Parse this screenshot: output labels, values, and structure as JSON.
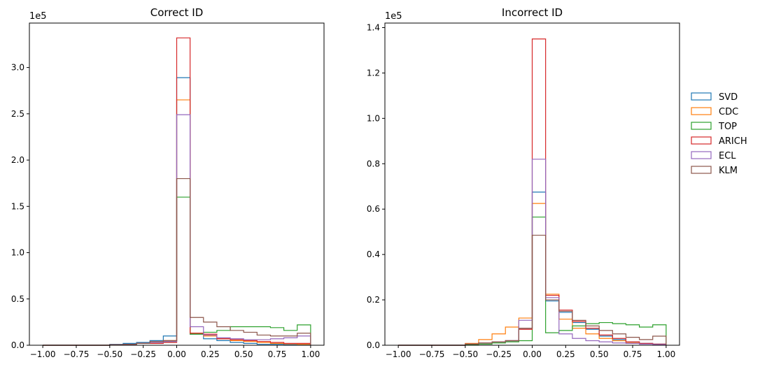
{
  "chart_data": [
    {
      "type": "histogram-step",
      "title": "Correct ID",
      "xlabel": "",
      "ylabel": "",
      "offset_label": "1e5",
      "xlim": [
        -1.1,
        1.1
      ],
      "ylim": [
        0,
        3.48
      ],
      "x_ticks": [
        -1.0,
        -0.75,
        -0.5,
        -0.25,
        0.0,
        0.25,
        0.5,
        0.75,
        1.0
      ],
      "x_tick_labels": [
        "−1.00",
        "−0.75",
        "−0.50",
        "−0.25",
        "0.00",
        "0.25",
        "0.50",
        "0.75",
        "1.00"
      ],
      "y_ticks": [
        0,
        0.5,
        1.0,
        1.5,
        2.0,
        2.5,
        3.0
      ],
      "y_tick_labels": [
        "0.0",
        "0.5",
        "1.0",
        "1.5",
        "2.0",
        "2.5",
        "3.0"
      ],
      "bin_edges": [
        -1.0,
        -0.9,
        -0.8,
        -0.7,
        -0.6,
        -0.5,
        -0.4,
        -0.3,
        -0.2,
        -0.1,
        0.0,
        0.1,
        0.2,
        0.3,
        0.4,
        0.5,
        0.6,
        0.7,
        0.8,
        0.9,
        1.0
      ],
      "series": [
        {
          "name": "SVD",
          "color": "#1f77b4",
          "values": [
            0,
            0,
            0,
            0,
            0,
            0.01,
            0.02,
            0.03,
            0.05,
            0.1,
            2.89,
            0.12,
            0.07,
            0.05,
            0.03,
            0.02,
            0.01,
            0.01,
            0.005,
            0.005
          ]
        },
        {
          "name": "CDC",
          "color": "#ff7f0e",
          "values": [
            0,
            0,
            0,
            0,
            0,
            0.005,
            0.01,
            0.02,
            0.03,
            0.05,
            2.65,
            0.13,
            0.1,
            0.07,
            0.05,
            0.04,
            0.03,
            0.02,
            0.015,
            0.01
          ]
        },
        {
          "name": "TOP",
          "color": "#2ca02c",
          "values": [
            0,
            0,
            0,
            0,
            0,
            0.005,
            0.01,
            0.02,
            0.03,
            0.04,
            1.6,
            0.12,
            0.14,
            0.16,
            0.2,
            0.2,
            0.2,
            0.19,
            0.16,
            0.22
          ]
        },
        {
          "name": "ARICH",
          "color": "#d62728",
          "values": [
            0,
            0,
            0,
            0,
            0,
            0.005,
            0.01,
            0.02,
            0.02,
            0.03,
            3.32,
            0.13,
            0.12,
            0.07,
            0.06,
            0.05,
            0.04,
            0.03,
            0.02,
            0.02
          ]
        },
        {
          "name": "ECL",
          "color": "#9467bd",
          "values": [
            0,
            0,
            0,
            0,
            0,
            0.005,
            0.01,
            0.02,
            0.03,
            0.04,
            2.49,
            0.2,
            0.11,
            0.08,
            0.07,
            0.06,
            0.06,
            0.07,
            0.08,
            0.1
          ]
        },
        {
          "name": "KLM",
          "color": "#8c564b",
          "values": [
            0,
            0,
            0,
            0,
            0,
            0.005,
            0.01,
            0.02,
            0.04,
            0.05,
            1.8,
            0.3,
            0.25,
            0.2,
            0.16,
            0.14,
            0.11,
            0.1,
            0.1,
            0.13
          ]
        }
      ]
    },
    {
      "type": "histogram-step",
      "title": "Incorrect ID",
      "xlabel": "",
      "ylabel": "",
      "offset_label": "1e5",
      "xlim": [
        -1.1,
        1.1
      ],
      "ylim": [
        0,
        1.42
      ],
      "x_ticks": [
        -1.0,
        -0.75,
        -0.5,
        -0.25,
        0.0,
        0.25,
        0.5,
        0.75,
        1.0
      ],
      "x_tick_labels": [
        "−1.00",
        "−0.75",
        "−0.50",
        "−0.25",
        "0.00",
        "0.25",
        "0.50",
        "0.75",
        "1.00"
      ],
      "y_ticks": [
        0,
        0.2,
        0.4,
        0.6,
        0.8,
        1.0,
        1.2,
        1.4
      ],
      "y_tick_labels": [
        "0.0",
        "0.2",
        "0.4",
        "0.6",
        "0.8",
        "1.0",
        "1.2",
        "1.4"
      ],
      "bin_edges": [
        -1.0,
        -0.9,
        -0.8,
        -0.7,
        -0.6,
        -0.5,
        -0.4,
        -0.3,
        -0.2,
        -0.1,
        0.0,
        0.1,
        0.2,
        0.3,
        0.4,
        0.5,
        0.6,
        0.7,
        0.8,
        0.9,
        1.0
      ],
      "series": [
        {
          "name": "SVD",
          "color": "#1f77b4",
          "values": [
            0,
            0,
            0,
            0,
            0,
            0.005,
            0.01,
            0.015,
            0.02,
            0.075,
            0.675,
            0.195,
            0.145,
            0.1,
            0.07,
            0.04,
            0.025,
            0.015,
            0.008,
            0.005
          ]
        },
        {
          "name": "CDC",
          "color": "#ff7f0e",
          "values": [
            0,
            0,
            0,
            0,
            0,
            0.008,
            0.025,
            0.05,
            0.08,
            0.12,
            0.625,
            0.225,
            0.115,
            0.075,
            0.05,
            0.03,
            0.02,
            0.01,
            0.005,
            0.003
          ]
        },
        {
          "name": "TOP",
          "color": "#2ca02c",
          "values": [
            0,
            0,
            0,
            0,
            0,
            0.003,
            0.005,
            0.01,
            0.015,
            0.02,
            0.565,
            0.055,
            0.065,
            0.085,
            0.095,
            0.1,
            0.095,
            0.09,
            0.08,
            0.09
          ]
        },
        {
          "name": "ARICH",
          "color": "#d62728",
          "values": [
            0,
            0,
            0,
            0,
            0,
            0.005,
            0.01,
            0.015,
            0.02,
            0.07,
            1.35,
            0.22,
            0.155,
            0.105,
            0.075,
            0.045,
            0.03,
            0.015,
            0.008,
            0.005
          ]
        },
        {
          "name": "ECL",
          "color": "#9467bd",
          "values": [
            0,
            0,
            0,
            0,
            0,
            0.005,
            0.01,
            0.015,
            0.02,
            0.11,
            0.82,
            0.21,
            0.05,
            0.03,
            0.02,
            0.015,
            0.01,
            0.008,
            0.005,
            0.003
          ]
        },
        {
          "name": "KLM",
          "color": "#8c564b",
          "values": [
            0,
            0,
            0,
            0,
            0,
            0.005,
            0.01,
            0.015,
            0.02,
            0.075,
            0.485,
            0.2,
            0.15,
            0.11,
            0.085,
            0.065,
            0.05,
            0.035,
            0.025,
            0.04
          ]
        }
      ]
    }
  ],
  "legend": {
    "placement": "right",
    "entries": [
      {
        "label": "SVD",
        "color": "#1f77b4"
      },
      {
        "label": "CDC",
        "color": "#ff7f0e"
      },
      {
        "label": "TOP",
        "color": "#2ca02c"
      },
      {
        "label": "ARICH",
        "color": "#d62728"
      },
      {
        "label": "ECL",
        "color": "#9467bd"
      },
      {
        "label": "KLM",
        "color": "#8c564b"
      }
    ]
  }
}
